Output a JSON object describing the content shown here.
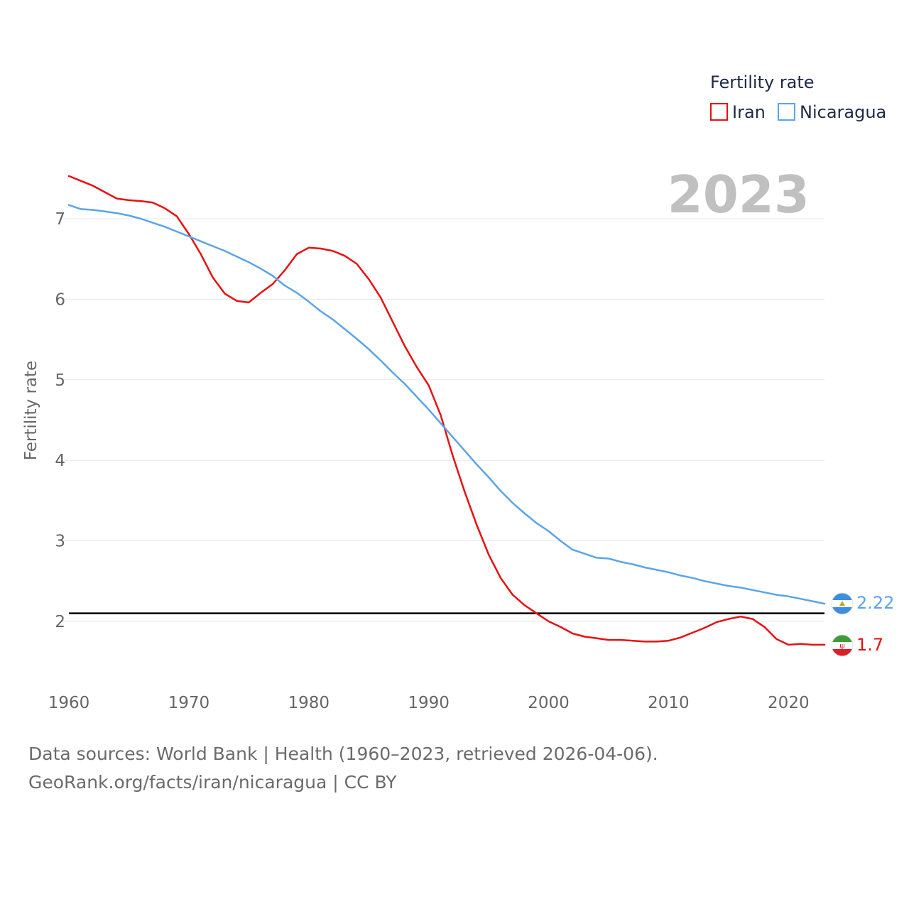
{
  "chart_data": {
    "type": "line",
    "title": "",
    "big_year": "2023",
    "xlabel": "",
    "ylabel": "Fertility rate",
    "xlim": [
      1960,
      2023
    ],
    "ylim": [
      1.3,
      7.6
    ],
    "x_ticks": [
      "1960",
      "1970",
      "1980",
      "1990",
      "2000",
      "2010",
      "2020"
    ],
    "y_ticks": [
      "2",
      "3",
      "4",
      "5",
      "6",
      "7"
    ],
    "grid": true,
    "legend": {
      "title": "Fertility rate",
      "position": "top-right"
    },
    "reference_line": {
      "y": 2.1,
      "color": "#000000"
    },
    "x": [
      1960,
      1961,
      1962,
      1963,
      1964,
      1965,
      1966,
      1967,
      1968,
      1969,
      1970,
      1971,
      1972,
      1973,
      1974,
      1975,
      1976,
      1977,
      1978,
      1979,
      1980,
      1981,
      1982,
      1983,
      1984,
      1985,
      1986,
      1987,
      1988,
      1989,
      1990,
      1991,
      1992,
      1993,
      1994,
      1995,
      1996,
      1997,
      1998,
      1999,
      2000,
      2001,
      2002,
      2003,
      2004,
      2005,
      2006,
      2007,
      2008,
      2009,
      2010,
      2011,
      2012,
      2013,
      2014,
      2015,
      2016,
      2017,
      2018,
      2019,
      2020,
      2021,
      2022,
      2023
    ],
    "series": [
      {
        "name": "Iran",
        "color": "#e81010",
        "end_label": "1.7",
        "flag": "iran",
        "values": [
          7.53,
          7.47,
          7.41,
          7.33,
          7.25,
          7.23,
          7.22,
          7.2,
          7.13,
          7.03,
          6.81,
          6.56,
          6.27,
          6.07,
          5.98,
          5.96,
          6.08,
          6.19,
          6.36,
          6.56,
          6.64,
          6.63,
          6.6,
          6.54,
          6.44,
          6.25,
          6.02,
          5.72,
          5.42,
          5.16,
          4.93,
          4.56,
          4.06,
          3.61,
          3.2,
          2.83,
          2.54,
          2.33,
          2.2,
          2.1,
          2.0,
          1.93,
          1.85,
          1.81,
          1.79,
          1.77,
          1.77,
          1.76,
          1.75,
          1.75,
          1.76,
          1.8,
          1.86,
          1.92,
          1.99,
          2.03,
          2.06,
          2.03,
          1.93,
          1.78,
          1.71,
          1.72,
          1.71,
          1.71
        ]
      },
      {
        "name": "Nicaragua",
        "color": "#5ba4ea",
        "end_label": "2.22",
        "flag": "nicaragua",
        "values": [
          7.17,
          7.12,
          7.11,
          7.09,
          7.07,
          7.04,
          7.0,
          6.95,
          6.9,
          6.84,
          6.78,
          6.72,
          6.66,
          6.6,
          6.53,
          6.46,
          6.38,
          6.29,
          6.17,
          6.08,
          5.97,
          5.85,
          5.75,
          5.63,
          5.51,
          5.38,
          5.24,
          5.09,
          4.95,
          4.79,
          4.63,
          4.46,
          4.29,
          4.12,
          3.95,
          3.79,
          3.62,
          3.47,
          3.34,
          3.22,
          3.12,
          3.0,
          2.89,
          2.84,
          2.79,
          2.78,
          2.74,
          2.71,
          2.67,
          2.64,
          2.61,
          2.57,
          2.54,
          2.5,
          2.47,
          2.44,
          2.42,
          2.39,
          2.36,
          2.33,
          2.31,
          2.28,
          2.25,
          2.22
        ]
      }
    ]
  },
  "footer": {
    "line1": "Data sources: World Bank | Health (1960–2023, retrieved 2026-04-06).",
    "line2": "GeoRank.org/facts/iran/nicaragua | CC BY"
  }
}
